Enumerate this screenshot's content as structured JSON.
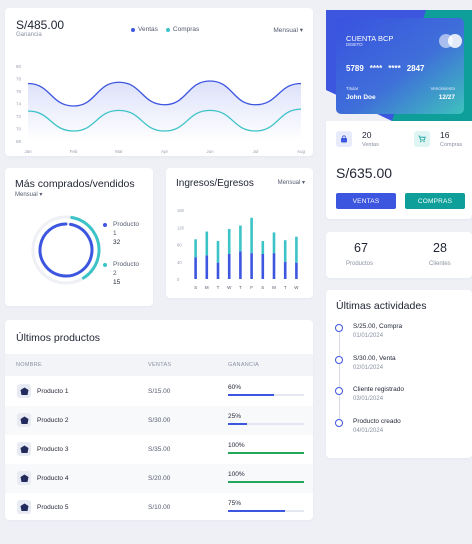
{
  "sales": {
    "amount": "S/485.00",
    "subtitle": "Ganancia",
    "legend": [
      {
        "label": "Ventas",
        "color": "#3d56e0"
      },
      {
        "label": "Compras",
        "color": "#3cc3c8"
      }
    ],
    "period": "Mensual ▾",
    "yticks": [
      "80",
      "78",
      "76",
      "74",
      "72",
      "70",
      "68"
    ],
    "months": [
      "Jan",
      "Feb",
      "Mar",
      "Apr",
      "Jun",
      "Jul",
      "Aug"
    ]
  },
  "card": {
    "bank": "CUENTA BCP",
    "type": "DEBITO",
    "number_start": "5789",
    "number_mask1": "****",
    "number_mask2": "****",
    "number_end": "2847",
    "holder_label": "Titular",
    "holder": "John Doe",
    "expiry_label": "Vencimiento",
    "expiry": "12/27"
  },
  "stats": {
    "ventas_count": "20",
    "ventas_label": "Ventas",
    "compras_count": "16",
    "compras_label": "Compras",
    "total": "S/635.00",
    "btn_ventas": "VENTAS",
    "btn_compras": "COMPRAS"
  },
  "counts": {
    "productos": "67",
    "productos_label": "Productos",
    "clientes": "28",
    "clientes_label": "Clientes"
  },
  "top_products": {
    "title": "Más comprados/vendidos",
    "period": "Mensual ▾",
    "items": [
      {
        "label_1": "Producto",
        "label_2": "1",
        "value": "32",
        "color": "#3d56e0"
      },
      {
        "label_1": "Producto",
        "label_2": "2",
        "value": "15",
        "color": "#3cc3c8"
      }
    ]
  },
  "income": {
    "title": "Ingresos/Egresos",
    "period": "Mensual ▾",
    "yticks": [
      "160",
      "120",
      "80",
      "40",
      "0"
    ],
    "days": [
      "S",
      "M",
      "T",
      "W",
      "T",
      "F",
      "S",
      "M",
      "T",
      "W"
    ]
  },
  "chart_data": [
    {
      "type": "line",
      "title": "",
      "x": [
        "Jan",
        "Feb",
        "Mar",
        "Apr",
        "Jun",
        "Jul",
        "Aug"
      ],
      "ylim": [
        68,
        80
      ],
      "series": [
        {
          "name": "Ventas",
          "values": [
            77.2,
            73.6,
            77.4,
            73.8,
            77.6,
            73.8,
            77.2
          ]
        },
        {
          "name": "Compras",
          "values": [
            72.8,
            69.6,
            72.9,
            69.6,
            72.9,
            69.6,
            73.1
          ]
        }
      ]
    },
    {
      "type": "pie",
      "title": "",
      "categories": [
        "Producto 1",
        "Producto 2"
      ],
      "values": [
        32,
        15
      ]
    },
    {
      "type": "bar",
      "title": "",
      "categories": [
        "S",
        "M",
        "T",
        "W",
        "T",
        "F",
        "S",
        "M",
        "T",
        "W"
      ],
      "ylim": [
        0,
        160
      ],
      "series": [
        {
          "values": [
            50,
            55,
            38,
            58,
            64,
            60,
            58,
            60,
            40,
            38
          ]
        },
        {
          "values": [
            42,
            55,
            50,
            58,
            60,
            82,
            30,
            48,
            50,
            60
          ]
        }
      ]
    }
  ],
  "products": {
    "title": "Últimos productos",
    "headers": {
      "name": "NOMBRE",
      "sales": "VENTAS",
      "profit": "GANANCIA"
    },
    "rows": [
      {
        "name": "Producto 1",
        "sales": "S/15.00",
        "pct_label": "60%",
        "pct": 60,
        "color": "#3d56e0"
      },
      {
        "name": "Producto 2",
        "sales": "S/30.00",
        "pct_label": "25%",
        "pct": 25,
        "color": "#3d56e0"
      },
      {
        "name": "Producto 3",
        "sales": "S/35.00",
        "pct_label": "100%",
        "pct": 100,
        "color": "#22a858"
      },
      {
        "name": "Producto 4",
        "sales": "S/20.00",
        "pct_label": "100%",
        "pct": 100,
        "color": "#22a858"
      },
      {
        "name": "Producto 5",
        "sales": "S/10.00",
        "pct_label": "75%",
        "pct": 75,
        "color": "#3d56e0"
      }
    ]
  },
  "activities": {
    "title": "Últimas actividades",
    "items": [
      {
        "title": "S/25.00, Compra",
        "date": "01/01/2024"
      },
      {
        "title": "S/30.00, Venta",
        "date": "02/01/2024"
      },
      {
        "title": "Cliente registrado",
        "date": "03/01/2024"
      },
      {
        "title": "Producto creado",
        "date": "04/01/2024"
      }
    ]
  },
  "colors": {
    "primary": "#3d56e0",
    "teal": "#0e9f9a",
    "teal_light": "#3cc3c8"
  }
}
